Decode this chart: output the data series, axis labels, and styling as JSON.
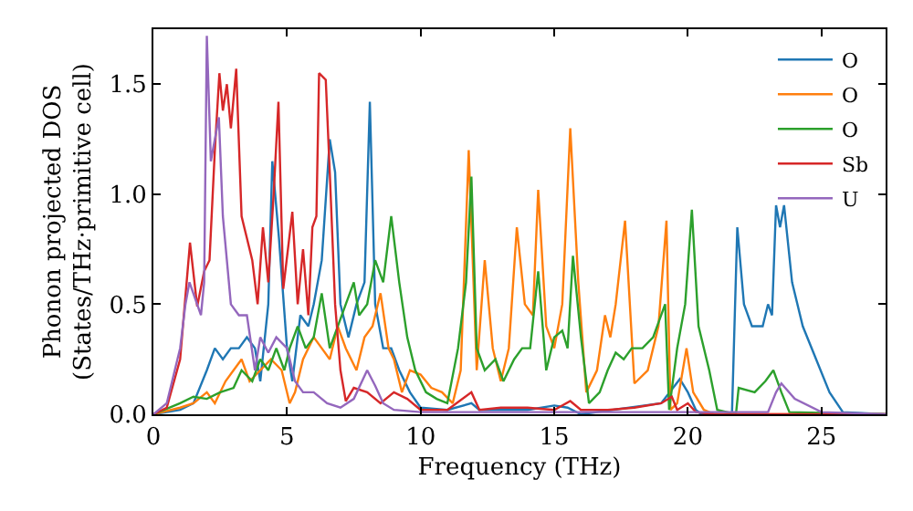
{
  "chart_data": {
    "type": "line",
    "xlabel": "Frequency (THz)",
    "ylabel": "Phonon projected DOS\n(States/THz·primitive cell)",
    "xlim": [
      0,
      27.4
    ],
    "ylim": [
      0,
      1.75
    ],
    "xticks": [
      0,
      5,
      10,
      15,
      20,
      25
    ],
    "yticks": [
      {
        "value": 0,
        "label": "0.0"
      },
      0.5,
      {
        "value": 1,
        "label": "1.0"
      },
      1.5
    ],
    "legend": "top right",
    "marker": "none",
    "line_style": "solid",
    "series": [
      {
        "name": "O",
        "color": "#1f77b4",
        "x": [
          0,
          1,
          1.5,
          2.0,
          2.3,
          2.6,
          2.9,
          3.2,
          3.5,
          3.8,
          4.0,
          4.3,
          4.45,
          4.7,
          5.0,
          5.2,
          5.5,
          5.8,
          6.0,
          6.3,
          6.6,
          6.8,
          7.0,
          7.3,
          7.6,
          7.9,
          8.1,
          8.3,
          8.6,
          8.9,
          9.2,
          9.6,
          10,
          11,
          11.9,
          12.2,
          14,
          15,
          15.5,
          16,
          19,
          19.7,
          20,
          20.3,
          20.5,
          21.65,
          21.85,
          22.1,
          22.4,
          22.8,
          23.0,
          23.15,
          23.3,
          23.45,
          23.6,
          23.9,
          24.3,
          24.8,
          25.3,
          25.8,
          27.4
        ],
        "values": [
          0,
          0.02,
          0.05,
          0.2,
          0.3,
          0.25,
          0.3,
          0.3,
          0.35,
          0.3,
          0.15,
          0.5,
          1.15,
          0.8,
          0.3,
          0.15,
          0.45,
          0.4,
          0.5,
          0.7,
          1.25,
          1.1,
          0.5,
          0.35,
          0.5,
          0.6,
          1.42,
          0.5,
          0.3,
          0.3,
          0.2,
          0.1,
          0.03,
          0.02,
          0.05,
          0.02,
          0.02,
          0.04,
          0.03,
          0,
          0.05,
          0.16,
          0.1,
          0.02,
          0,
          0,
          0.85,
          0.5,
          0.4,
          0.4,
          0.5,
          0.45,
          0.95,
          0.85,
          0.95,
          0.6,
          0.4,
          0.25,
          0.1,
          0.01,
          0
        ]
      },
      {
        "name": "O",
        "color": "#ff7f0e",
        "x": [
          0,
          1,
          1.5,
          2.0,
          2.3,
          2.7,
          3.0,
          3.3,
          3.6,
          4.0,
          4.4,
          4.8,
          5.1,
          5.3,
          5.6,
          6.0,
          6.3,
          6.6,
          6.9,
          7.2,
          7.6,
          7.9,
          8.2,
          8.5,
          8.8,
          9.0,
          9.3,
          9.6,
          10.0,
          10.4,
          10.8,
          11.2,
          11.5,
          11.8,
          12.1,
          12.4,
          12.7,
          13.0,
          13.3,
          13.6,
          13.9,
          14.2,
          14.4,
          14.7,
          15.0,
          15.3,
          15.6,
          15.9,
          16.2,
          16.6,
          16.9,
          17.1,
          17.3,
          17.65,
          18.0,
          18.5,
          18.9,
          19.2,
          19.35,
          19.6,
          19.95,
          20.2,
          20.6,
          21,
          27.4
        ],
        "values": [
          0,
          0.03,
          0.05,
          0.1,
          0.05,
          0.15,
          0.2,
          0.25,
          0.15,
          0.2,
          0.25,
          0.2,
          0.05,
          0.1,
          0.25,
          0.35,
          0.3,
          0.25,
          0.4,
          0.3,
          0.2,
          0.35,
          0.4,
          0.55,
          0.3,
          0.25,
          0.1,
          0.2,
          0.18,
          0.12,
          0.1,
          0.05,
          0.2,
          1.2,
          0.2,
          0.7,
          0.3,
          0.15,
          0.3,
          0.85,
          0.5,
          0.45,
          1.02,
          0.4,
          0.3,
          0.5,
          1.3,
          0.6,
          0.1,
          0.2,
          0.45,
          0.35,
          0.5,
          0.88,
          0.14,
          0.2,
          0.4,
          0.88,
          0.02,
          0.05,
          0.3,
          0.1,
          0.02,
          0,
          0
        ]
      },
      {
        "name": "O",
        "color": "#2ca02c",
        "x": [
          0,
          1,
          1.5,
          2.0,
          2.5,
          3.0,
          3.3,
          3.7,
          4.0,
          4.3,
          4.6,
          4.9,
          5.1,
          5.4,
          5.7,
          6.0,
          6.3,
          6.6,
          6.9,
          7.2,
          7.5,
          7.7,
          8.0,
          8.3,
          8.6,
          8.9,
          9.2,
          9.5,
          9.8,
          10.2,
          10.6,
          11.0,
          11.4,
          11.7,
          11.9,
          12.1,
          12.4,
          12.8,
          13.1,
          13.5,
          13.8,
          14.1,
          14.4,
          14.7,
          15.0,
          15.3,
          15.5,
          15.7,
          16.0,
          16.3,
          16.7,
          17.0,
          17.3,
          17.6,
          17.9,
          18.3,
          18.7,
          19.15,
          19.3,
          19.6,
          19.9,
          20.15,
          20.4,
          20.8,
          21.1,
          21.8,
          21.9,
          22.5,
          22.9,
          23.2,
          23.5,
          23.8,
          27.4
        ],
        "values": [
          0,
          0.05,
          0.08,
          0.07,
          0.1,
          0.12,
          0.2,
          0.15,
          0.25,
          0.2,
          0.3,
          0.2,
          0.3,
          0.4,
          0.3,
          0.35,
          0.55,
          0.3,
          0.4,
          0.5,
          0.6,
          0.45,
          0.5,
          0.7,
          0.6,
          0.9,
          0.6,
          0.35,
          0.2,
          0.1,
          0.07,
          0.05,
          0.3,
          0.6,
          1.08,
          0.3,
          0.2,
          0.25,
          0.15,
          0.25,
          0.3,
          0.3,
          0.65,
          0.2,
          0.35,
          0.38,
          0.3,
          0.72,
          0.35,
          0.05,
          0.1,
          0.2,
          0.28,
          0.25,
          0.3,
          0.3,
          0.35,
          0.5,
          0.02,
          0.3,
          0.5,
          0.93,
          0.4,
          0.2,
          0.02,
          0,
          0.12,
          0.1,
          0.15,
          0.2,
          0.1,
          0.01,
          0
        ]
      },
      {
        "name": "Sb",
        "color": "#d62728",
        "x": [
          0,
          0.5,
          1.0,
          1.37,
          1.64,
          1.9,
          2.1,
          2.3,
          2.47,
          2.6,
          2.75,
          2.9,
          3.1,
          3.3,
          3.5,
          3.7,
          3.9,
          4.1,
          4.3,
          4.5,
          4.68,
          4.86,
          5.2,
          5.4,
          5.6,
          5.8,
          5.95,
          6.1,
          6.2,
          6.45,
          6.6,
          6.8,
          7.0,
          7.2,
          7.5,
          8.0,
          8.5,
          9.0,
          9.5,
          10,
          11,
          11.9,
          12.2,
          13,
          14,
          15,
          15.6,
          16,
          17,
          18,
          19,
          19.4,
          19.6,
          20,
          20.3,
          21,
          27.4
        ],
        "values": [
          0,
          0.03,
          0.25,
          0.78,
          0.49,
          0.65,
          0.7,
          1.2,
          1.55,
          1.38,
          1.5,
          1.3,
          1.57,
          0.9,
          0.8,
          0.7,
          0.5,
          0.85,
          0.6,
          1.0,
          1.42,
          0.57,
          0.92,
          0.5,
          0.75,
          0.45,
          0.85,
          0.9,
          1.55,
          1.52,
          1.1,
          0.5,
          0.2,
          0.06,
          0.12,
          0.1,
          0.05,
          0.1,
          0.07,
          0.02,
          0.02,
          0.1,
          0.02,
          0.03,
          0.03,
          0.02,
          0.06,
          0.02,
          0.02,
          0.03,
          0.05,
          0.08,
          0.02,
          0.05,
          0.01,
          0,
          0
        ]
      },
      {
        "name": "U",
        "color": "#9467bd",
        "x": [
          0,
          0.5,
          1.0,
          1.2,
          1.35,
          1.78,
          1.9,
          2.0,
          2.15,
          2.45,
          2.6,
          2.9,
          3.2,
          3.5,
          3.8,
          4.0,
          4.3,
          4.6,
          5.0,
          5.3,
          5.6,
          6.0,
          6.5,
          7.0,
          7.5,
          8.0,
          8.3,
          8.6,
          9,
          10,
          23,
          23.3,
          23.5,
          24,
          25,
          27.4
        ],
        "values": [
          0,
          0.05,
          0.3,
          0.5,
          0.6,
          0.45,
          0.6,
          1.72,
          1.15,
          1.35,
          0.9,
          0.5,
          0.45,
          0.45,
          0.2,
          0.35,
          0.28,
          0.35,
          0.3,
          0.15,
          0.1,
          0.1,
          0.05,
          0.03,
          0.07,
          0.2,
          0.13,
          0.05,
          0.02,
          0.01,
          0.01,
          0.1,
          0.14,
          0.07,
          0.01,
          0
        ]
      }
    ]
  }
}
